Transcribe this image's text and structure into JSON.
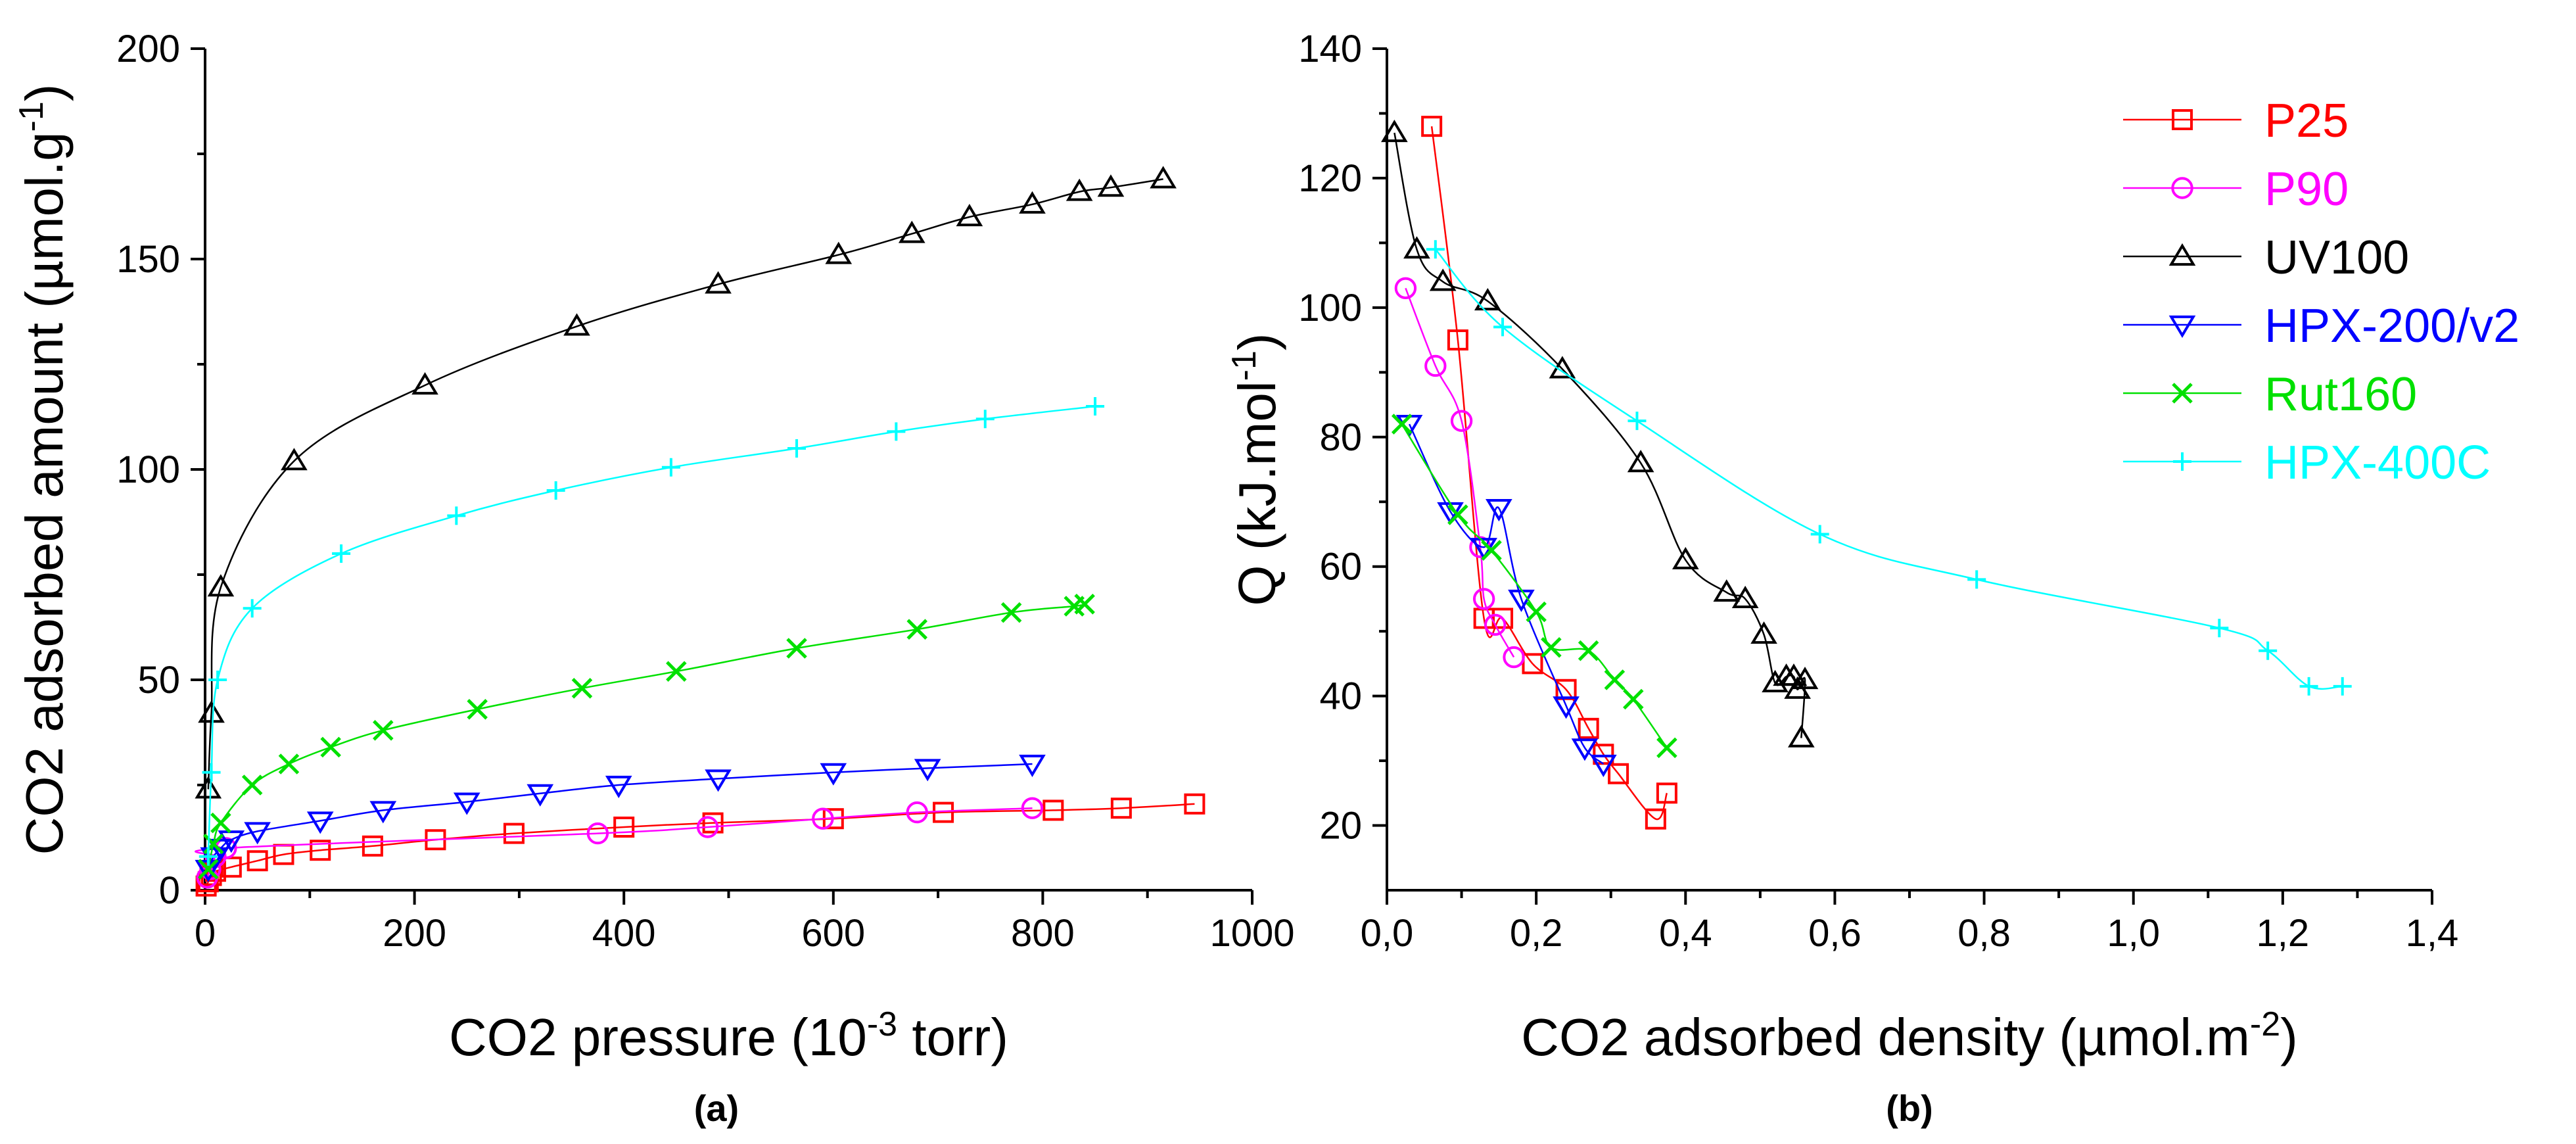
{
  "chart_data": [
    {
      "type": "scatter",
      "panel_label": "(a)",
      "xlabel": "CO2 pressure (10",
      "xlabel_sup": "-3",
      "xlabel_end": " torr)",
      "ylabel": "CO2 adsorbed amount (µmol.g",
      "ylabel_sup": "-1",
      "ylabel_end": ")",
      "xlim": [
        0,
        1000
      ],
      "ylim": [
        0,
        200
      ],
      "xticks": [
        0,
        200,
        400,
        600,
        800,
        1000
      ],
      "yticks": [
        0,
        50,
        100,
        150,
        200
      ],
      "series": [
        {
          "name": "P25",
          "color": "#ff0000",
          "marker": "square",
          "x": [
            1,
            3,
            6,
            10,
            25,
            50,
            75,
            110,
            160,
            220,
            295,
            400,
            485,
            600,
            705,
            810,
            875,
            945
          ],
          "y": [
            1,
            2,
            3.5,
            4.5,
            5.5,
            7,
            8.5,
            9.5,
            10.5,
            12,
            13.5,
            15,
            16,
            17,
            18.5,
            19,
            19.5,
            20.5
          ]
        },
        {
          "name": "P90",
          "color": "#ff00ff",
          "marker": "circle",
          "x": [
            2,
            5,
            10,
            20,
            375,
            480,
            590,
            680,
            790
          ],
          "y": [
            3,
            5,
            8,
            10,
            13.5,
            15,
            17,
            18.5,
            19.5
          ]
        },
        {
          "name": "UV100",
          "color": "#000000",
          "marker": "triangle-up",
          "x": [
            3,
            6,
            15,
            85,
            210,
            355,
            490,
            605,
            675,
            730,
            790,
            835,
            865,
            915
          ],
          "y": [
            24,
            42,
            72,
            102,
            120,
            134,
            144,
            151,
            156,
            160,
            163,
            166,
            167,
            169
          ]
        },
        {
          "name": "HPX-200/v2",
          "color": "#0000ff",
          "marker": "triangle-down",
          "x": [
            3,
            8,
            15,
            25,
            50,
            110,
            170,
            250,
            320,
            395,
            490,
            600,
            690,
            790
          ],
          "y": [
            5,
            8,
            10,
            12,
            14,
            16.5,
            19,
            21,
            23,
            25,
            26.5,
            28,
            29,
            30
          ]
        },
        {
          "name": "Rut160",
          "color": "#00e000",
          "marker": "x",
          "x": [
            3,
            8,
            15,
            45,
            80,
            120,
            170,
            260,
            360,
            450,
            565,
            680,
            770,
            830,
            840
          ],
          "y": [
            5,
            11,
            16,
            25,
            30,
            34,
            38,
            43,
            48,
            52,
            57.5,
            62,
            66,
            67.5,
            68
          ]
        },
        {
          "name": "HPX-400C",
          "color": "#00ffff",
          "marker": "plus",
          "x": [
            3,
            6,
            12,
            45,
            130,
            240,
            335,
            445,
            565,
            660,
            745,
            850
          ],
          "y": [
            8,
            28,
            50,
            67,
            80,
            89,
            95,
            100.5,
            105,
            109,
            112,
            115
          ]
        }
      ]
    },
    {
      "type": "scatter",
      "panel_label": "(b)",
      "xlabel": "CO2 adsorbed density (µmol.m",
      "xlabel_sup": "-2",
      "xlabel_end": ")",
      "ylabel": "Q (kJ.mol",
      "ylabel_sup": "-1",
      "ylabel_end": ")",
      "xlim": [
        0.0,
        1.4
      ],
      "ylim": [
        10,
        140
      ],
      "xticks": [
        0.0,
        0.2,
        0.4,
        0.6,
        0.8,
        1.0,
        1.2,
        1.4
      ],
      "xtick_labels": [
        "0,0",
        "0,2",
        "0,4",
        "0,6",
        "0,8",
        "1,0",
        "1,2",
        "1,4"
      ],
      "yticks": [
        20,
        40,
        60,
        80,
        100,
        120,
        140
      ],
      "legend_position": "top-right",
      "series": [
        {
          "name": "P25",
          "color": "#ff0000",
          "marker": "square",
          "x": [
            0.06,
            0.095,
            0.13,
            0.155,
            0.195,
            0.24,
            0.27,
            0.29,
            0.31,
            0.36,
            0.375
          ],
          "y": [
            128,
            95,
            52,
            52,
            45,
            41,
            35,
            31,
            28,
            21,
            25
          ]
        },
        {
          "name": "P90",
          "color": "#ff00ff",
          "marker": "circle",
          "x": [
            0.025,
            0.065,
            0.1,
            0.125,
            0.13,
            0.145,
            0.17
          ],
          "y": [
            103,
            91,
            82.5,
            63,
            55,
            51,
            46
          ]
        },
        {
          "name": "UV100",
          "color": "#000000",
          "marker": "triangle-up",
          "x": [
            0.01,
            0.04,
            0.075,
            0.135,
            0.235,
            0.34,
            0.4,
            0.455,
            0.48,
            0.505,
            0.52,
            0.535,
            0.545,
            0.55,
            0.56,
            0.555
          ],
          "y": [
            127,
            109,
            104,
            101,
            90.5,
            76,
            61,
            56,
            55,
            49.5,
            42,
            43,
            43,
            41,
            42.5,
            33.5
          ]
        },
        {
          "name": "HPX-200/v2",
          "color": "#0000ff",
          "marker": "triangle-down",
          "x": [
            0.03,
            0.085,
            0.13,
            0.15,
            0.18,
            0.24,
            0.265,
            0.29
          ],
          "y": [
            82,
            68.5,
            63,
            69,
            55,
            38.5,
            32,
            29.5
          ]
        },
        {
          "name": "Rut160",
          "color": "#00e000",
          "marker": "x",
          "x": [
            0.02,
            0.095,
            0.14,
            0.2,
            0.22,
            0.27,
            0.305,
            0.33,
            0.375
          ],
          "y": [
            82,
            68,
            62.5,
            53,
            47.5,
            47,
            42.5,
            39.5,
            32
          ]
        },
        {
          "name": "HPX-400C",
          "color": "#00ffff",
          "marker": "plus",
          "x": [
            0.065,
            0.155,
            0.335,
            0.58,
            0.79,
            1.115,
            1.18,
            1.235,
            1.28
          ],
          "y": [
            109,
            97,
            82.5,
            65,
            58,
            50.5,
            47,
            41.5,
            41.5
          ]
        }
      ]
    }
  ]
}
